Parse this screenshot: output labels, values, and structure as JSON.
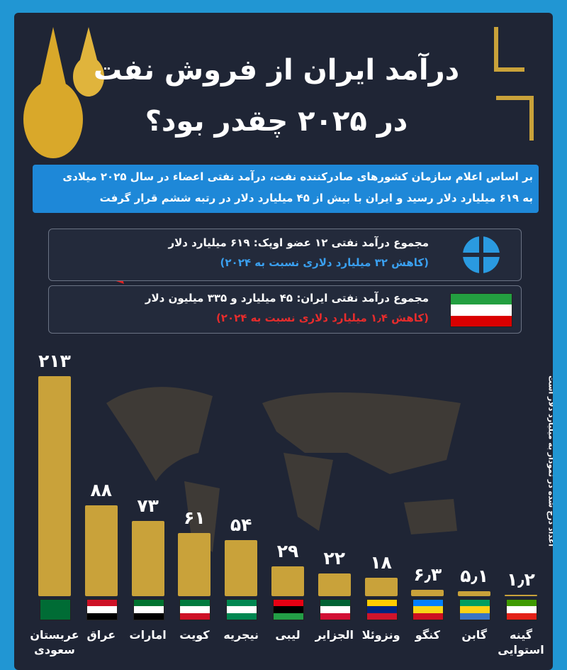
{
  "header": {
    "title_line1": "درآمد ایران از فروش نفت",
    "title_line2": "در ۲۰۲۵ چقدر بود؟"
  },
  "intro": {
    "line1": "بر اساس اعلام سازمان کشورهای صادرکننده نفت، درآمد نفتی اعضاء در سال ۲۰۲۵ میلادی",
    "line2": "به ۶۱۹ میلیارد دلار رسید و ایران با بیش از ۴۵ میلیارد دلار در رتبه ششم قرار گرفت"
  },
  "opec_box": {
    "text": "مجموع درآمد نفتی ۱۲ عضو اوپک: ۶۱۹ میلیارد دلار",
    "note": "(کاهش ۳۲ میلیارد دلاری نسبت به ۲۰۲۴)"
  },
  "iran_box": {
    "text": "مجموع درآمد نفتی ایران: ۴۵ میلیارد و ۳۳۵ میلیون دلار",
    "note": "(کاهش ۱٫۴ میلیارد دلاری نسبت به ۲۰۲۴)"
  },
  "chart_data": {
    "type": "bar",
    "color": "#c9a23a",
    "unit_note": "اعداد درج شده در نمودار به میلیارد دلار است",
    "categories": [
      "عربستان سعودی",
      "عراق",
      "امارات",
      "کویت",
      "نیجریه",
      "لیبی",
      "الجزایر",
      "ونزوئلا",
      "کنگو",
      "گابن",
      "گینه استوایی"
    ],
    "values": [
      213,
      88,
      73,
      61,
      54,
      29,
      22,
      18,
      6.3,
      5.1,
      1.2
    ],
    "value_labels": [
      "۲۱۳",
      "۸۸",
      "۷۳",
      "۶۱",
      "۵۴",
      "۲۹",
      "۲۲",
      "۱۸",
      "۶٫۳",
      "۵٫۱",
      "۱٫۲"
    ]
  }
}
